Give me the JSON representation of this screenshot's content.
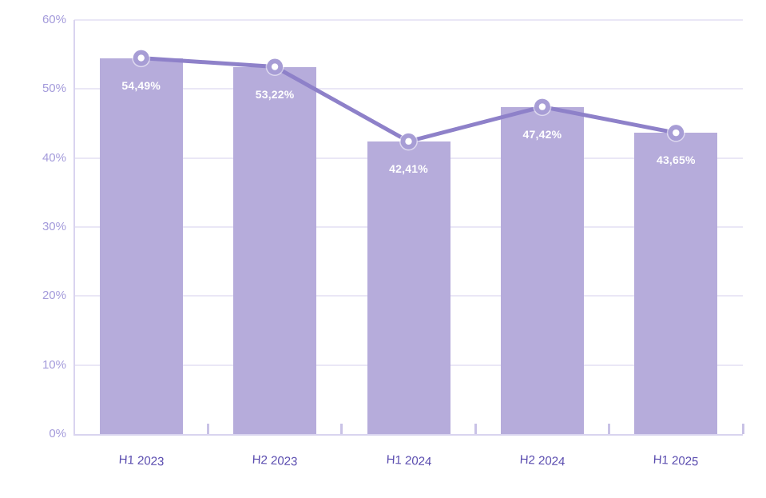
{
  "chart_data": {
    "type": "bar",
    "subtype": "bar-with-line-overlay",
    "title": "",
    "xlabel": "",
    "ylabel": "",
    "categories": [
      "H1 2023",
      "H2 2023",
      "H1 2024",
      "H2 2024",
      "H1 2025"
    ],
    "series": [
      {
        "name": "bars",
        "type": "bar",
        "values": [
          54.49,
          53.22,
          42.41,
          47.42,
          43.65
        ]
      },
      {
        "name": "trend-line",
        "type": "line",
        "values": [
          54.49,
          53.22,
          42.41,
          47.42,
          43.65
        ]
      }
    ],
    "data_labels": [
      "54,49%",
      "53,22%",
      "42,41%",
      "47,42%",
      "43,65%"
    ],
    "y_ticks": [
      "0%",
      "10%",
      "20%",
      "30%",
      "40%",
      "50%",
      "60%"
    ],
    "ylim": [
      0,
      60
    ],
    "grid": true,
    "legend_position": "none",
    "colors": {
      "background": "#ffffff",
      "bar_fill": "#b6acdb",
      "line_stroke": "#8e81c9",
      "marker_ring": "#a79dd5",
      "marker_center": "#ffffff",
      "gridline": "#eae7f6",
      "axis_line": "#d9d4ef",
      "boundary_tick": "#c9c2e6",
      "y_label_text": "#a49bdb",
      "x_label_text": "#5a4caf",
      "data_label_text": "#ffffff"
    }
  }
}
